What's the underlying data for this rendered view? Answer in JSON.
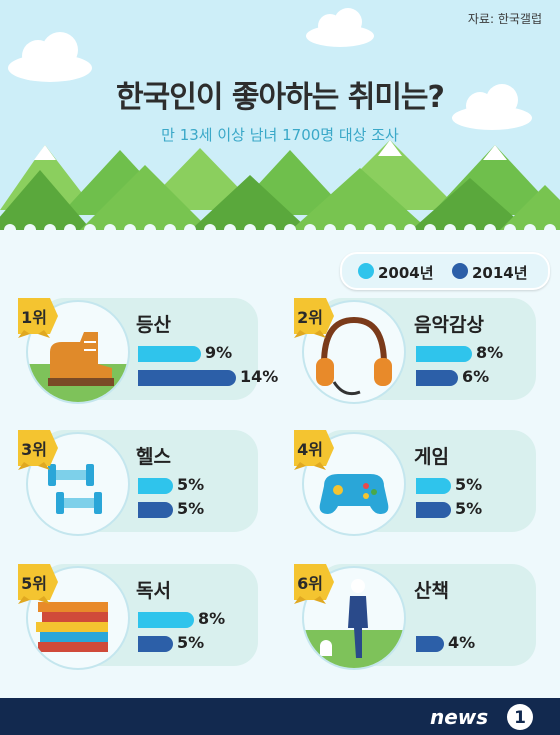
{
  "header": {
    "source": "자료: 한국갤럽",
    "title": "한국인이 좋아하는 취미는?",
    "subtitle": "만 13세 이상 남녀 1700명 대상 조사"
  },
  "legend": [
    {
      "label": "2004년",
      "color": "#2fc4ec"
    },
    {
      "label": "2014년",
      "color": "#2c5fa8"
    }
  ],
  "items": [
    {
      "rank": "1위",
      "name": "등산",
      "v2004": "9%",
      "v2014": "14%",
      "icon": "hiking-boot-icon"
    },
    {
      "rank": "2위",
      "name": "음악감상",
      "v2004": "8%",
      "v2014": "6%",
      "icon": "headphones-icon"
    },
    {
      "rank": "3위",
      "name": "헬스",
      "v2004": "5%",
      "v2014": "5%",
      "icon": "dumbbell-icon"
    },
    {
      "rank": "4위",
      "name": "게임",
      "v2004": "5%",
      "v2014": "5%",
      "icon": "gamepad-icon"
    },
    {
      "rank": "5위",
      "name": "독서",
      "v2004": "8%",
      "v2014": "5%",
      "icon": "books-icon"
    },
    {
      "rank": "6위",
      "name": "산책",
      "v2004": "",
      "v2014": "4%",
      "icon": "walking-person-icon"
    }
  ],
  "chart_data": {
    "type": "bar",
    "title": "한국인이 좋아하는 취미는?",
    "subtitle": "만 13세 이상 남녀 1700명 대상 조사",
    "categories": [
      "등산",
      "음악감상",
      "헬스",
      "게임",
      "독서",
      "산책"
    ],
    "series": [
      {
        "name": "2004년",
        "values": [
          9,
          8,
          5,
          5,
          8,
          null
        ]
      },
      {
        "name": "2014년",
        "values": [
          14,
          6,
          5,
          5,
          5,
          4
        ]
      }
    ],
    "unit": "%"
  },
  "footer": {
    "logo_text": "news",
    "logo_number": "1"
  }
}
